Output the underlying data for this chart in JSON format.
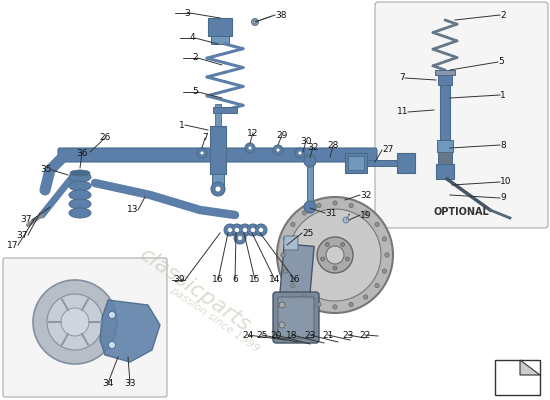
{
  "bg_color": "#ffffff",
  "part_color": "#5b7fa8",
  "part_color2": "#7098bc",
  "dark_part": "#4a6a8a",
  "line_color": "#222222",
  "label_fontsize": 6.5,
  "watermark_color": "#c8d0b8",
  "optional_label": "OPTIONAL",
  "title": ""
}
